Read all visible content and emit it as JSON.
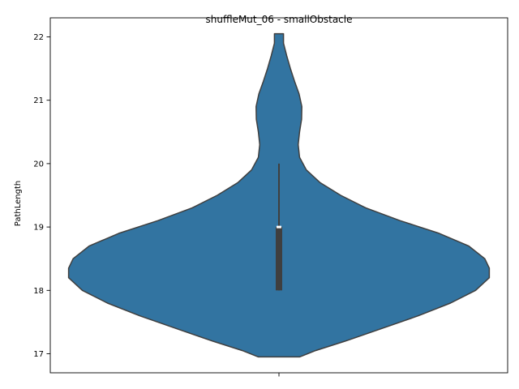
{
  "chart_data": {
    "type": "violin",
    "title": "shuffleMut_06 - smallObstacle",
    "xlabel": "",
    "ylabel": "PathLength",
    "ylim": [
      16.7,
      22.3
    ],
    "yticks": [
      17,
      18,
      19,
      20,
      21,
      22
    ],
    "grid": false,
    "legend": "none",
    "violin": {
      "color": "#3274a1",
      "edge_color": "#3f3f3f",
      "range": [
        16.95,
        22.05
      ],
      "density_profile": [
        {
          "y": 16.95,
          "half_width": 0.09
        },
        {
          "y": 17.05,
          "half_width": 0.16
        },
        {
          "y": 17.2,
          "half_width": 0.29
        },
        {
          "y": 17.4,
          "half_width": 0.45
        },
        {
          "y": 17.6,
          "half_width": 0.61
        },
        {
          "y": 17.8,
          "half_width": 0.75
        },
        {
          "y": 18.0,
          "half_width": 0.86
        },
        {
          "y": 18.2,
          "half_width": 0.92
        },
        {
          "y": 18.35,
          "half_width": 0.92
        },
        {
          "y": 18.5,
          "half_width": 0.9
        },
        {
          "y": 18.7,
          "half_width": 0.83
        },
        {
          "y": 18.9,
          "half_width": 0.7
        },
        {
          "y": 19.1,
          "half_width": 0.53
        },
        {
          "y": 19.3,
          "half_width": 0.38
        },
        {
          "y": 19.5,
          "half_width": 0.27
        },
        {
          "y": 19.7,
          "half_width": 0.18
        },
        {
          "y": 19.9,
          "half_width": 0.12
        },
        {
          "y": 20.1,
          "half_width": 0.09
        },
        {
          "y": 20.3,
          "half_width": 0.084
        },
        {
          "y": 20.5,
          "half_width": 0.09
        },
        {
          "y": 20.7,
          "half_width": 0.099
        },
        {
          "y": 20.9,
          "half_width": 0.1
        },
        {
          "y": 21.1,
          "half_width": 0.088
        },
        {
          "y": 21.3,
          "half_width": 0.068
        },
        {
          "y": 21.5,
          "half_width": 0.05
        },
        {
          "y": 21.7,
          "half_width": 0.034
        },
        {
          "y": 21.9,
          "half_width": 0.02
        },
        {
          "y": 22.05,
          "half_width": 0.02
        }
      ]
    },
    "box": {
      "q1": 18.0,
      "median": 19.0,
      "q3": 19.0,
      "whisker_low": 18.0,
      "whisker_high": 20.0
    }
  }
}
